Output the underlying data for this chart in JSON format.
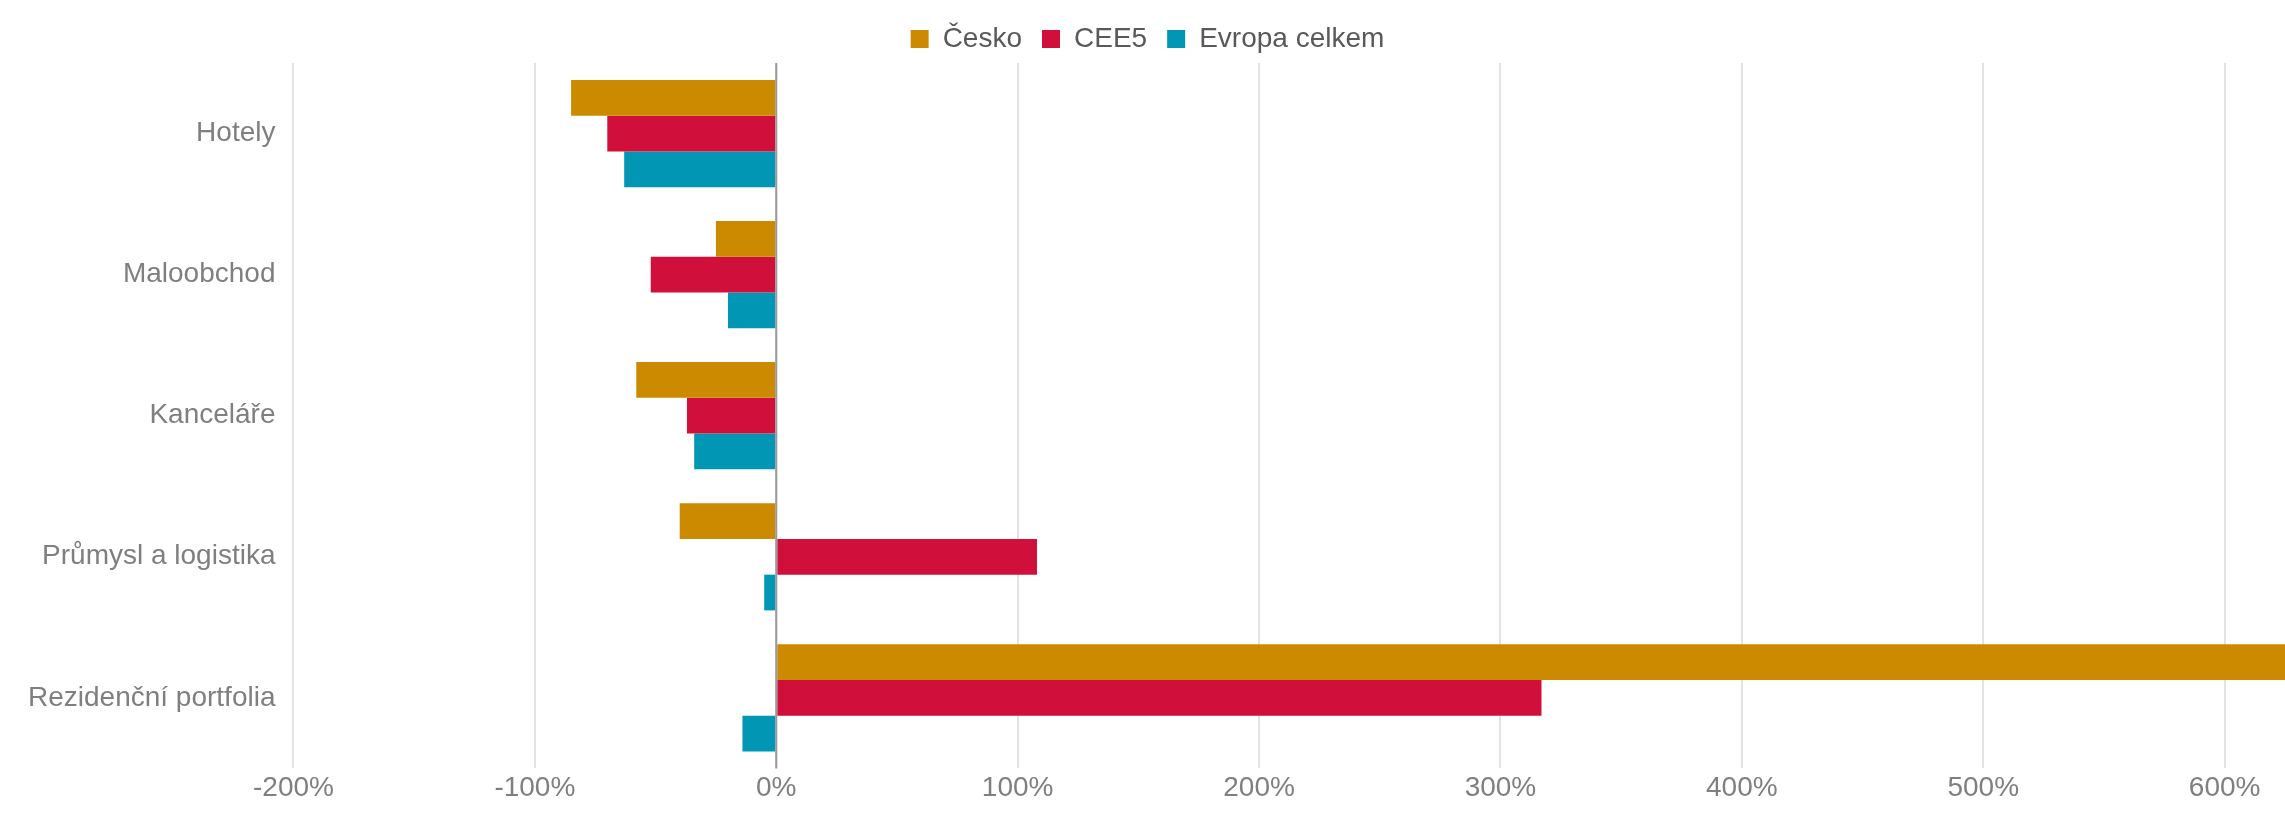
{
  "chart_data": {
    "type": "bar",
    "orientation": "horizontal",
    "categories": [
      "Hotely",
      "Maloobchod",
      "Kanceláře",
      "Průmysl a logistika",
      "Rezidenční portfolia"
    ],
    "series": [
      {
        "name": "Česko",
        "color": "#cc8a00",
        "values": [
          -85,
          -25,
          -58,
          -40,
          625
        ]
      },
      {
        "name": "CEE5",
        "color": "#d0103a",
        "values": [
          -70,
          -52,
          -37,
          108,
          317
        ]
      },
      {
        "name": "Evropa celkem",
        "color": "#0096b4",
        "values": [
          -63,
          -20,
          -34,
          -5,
          -14
        ]
      }
    ],
    "xlim": [
      -200,
      625
    ],
    "xticks": [
      {
        "value": -200,
        "label": "-200%"
      },
      {
        "value": -100,
        "label": "-100%"
      },
      {
        "value": 0,
        "label": "0%"
      },
      {
        "value": 100,
        "label": "100%"
      },
      {
        "value": 200,
        "label": "200%"
      },
      {
        "value": 300,
        "label": "300%"
      },
      {
        "value": 400,
        "label": "400%"
      },
      {
        "value": 500,
        "label": "500%"
      },
      {
        "value": 600,
        "label": "600%"
      }
    ],
    "grid": "x",
    "legend": "top"
  }
}
